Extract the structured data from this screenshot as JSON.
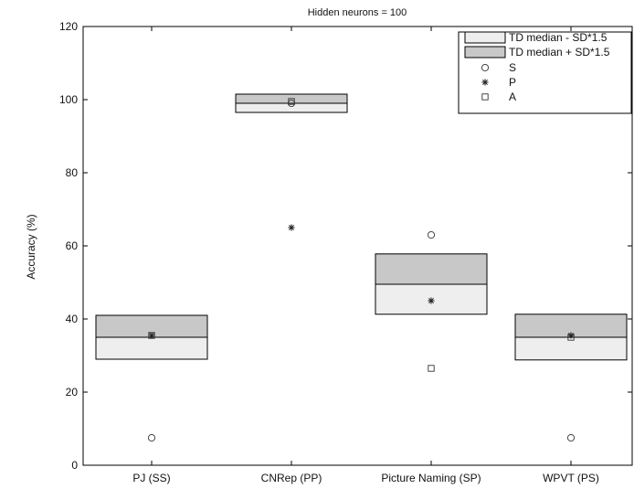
{
  "chart_data": {
    "type": "box",
    "title": "Hidden neurons = 100",
    "xlabel": "",
    "ylabel": "Accuracy (%)",
    "ylim": [
      0,
      120
    ],
    "yticks": [
      0,
      20,
      40,
      60,
      80,
      100,
      120
    ],
    "categories": [
      "PJ (SS)",
      "CNRep (PP)",
      "Picture Naming (SP)",
      "WPVT (PS)"
    ],
    "td_median": [
      35,
      99,
      49.5,
      35
    ],
    "td_lower": [
      29,
      96.5,
      41.3,
      28.8
    ],
    "td_upper": [
      41,
      101.5,
      57.8,
      41.3
    ],
    "series": [
      {
        "name": "S",
        "marker": "circle",
        "values": [
          7.5,
          99,
          63,
          7.5
        ]
      },
      {
        "name": "P",
        "marker": "star",
        "values": [
          35.5,
          65,
          45,
          35.5
        ]
      },
      {
        "name": "A",
        "marker": "square",
        "values": [
          35.5,
          99.5,
          26.5,
          35
        ]
      }
    ],
    "legend": {
      "position": "top-right",
      "entries": [
        {
          "label": "TD median - SD*1.5",
          "kind": "box-light"
        },
        {
          "label": "TD median + SD*1.5",
          "kind": "box-dark"
        },
        {
          "label": "S",
          "kind": "circle"
        },
        {
          "label": "P",
          "kind": "star"
        },
        {
          "label": "A",
          "kind": "square"
        }
      ]
    },
    "colors": {
      "light_box": "#eeeeee",
      "dark_box": "#c8c8c8",
      "axis": "#000000"
    }
  }
}
